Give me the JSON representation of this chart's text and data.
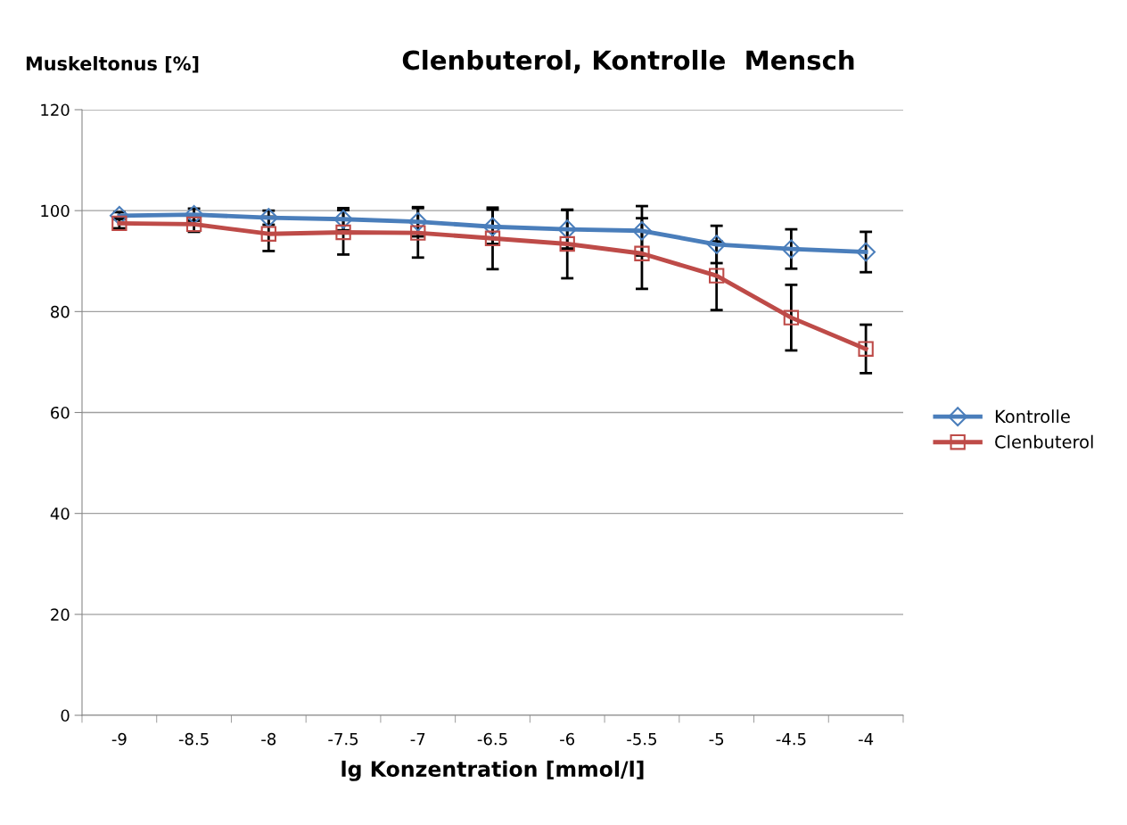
{
  "chart_data": {
    "type": "line",
    "title": "Clenbuterol, Kontrolle  Mensch",
    "xlabel": "lg Konzentration [mmol/l]",
    "ylabel": "Muskeltonus [%]",
    "categories": [
      "-9",
      "-8.5",
      "-8",
      "-7.5",
      "-7",
      "-6.5",
      "-6",
      "-5.5",
      "-5",
      "-4.5",
      "-4"
    ],
    "series": [
      {
        "name": "Kontrolle",
        "color": "#4a7ebb",
        "marker": "diamond",
        "values": [
          99,
          99.2,
          98.6,
          98.3,
          97.8,
          96.8,
          96.3,
          96.0,
          93.3,
          92.4,
          91.8
        ],
        "errors": [
          0.7,
          1.2,
          1.4,
          2.2,
          2.9,
          3.4,
          3.8,
          4.9,
          3.7,
          3.9,
          4.0
        ]
      },
      {
        "name": "Clenbuterol",
        "color": "#be4b48",
        "marker": "square",
        "values": [
          97.5,
          97.3,
          95.4,
          95.7,
          95.6,
          94.5,
          93.4,
          91.5,
          87.1,
          78.8,
          72.6
        ],
        "errors": [
          1.0,
          1.5,
          3.4,
          4.4,
          4.9,
          6.1,
          6.8,
          7.0,
          6.8,
          6.5,
          4.8
        ]
      }
    ],
    "ylim": [
      0,
      120
    ],
    "yticks": [
      0,
      20,
      40,
      60,
      80,
      100,
      120
    ],
    "grid": "y",
    "legend": "right"
  }
}
